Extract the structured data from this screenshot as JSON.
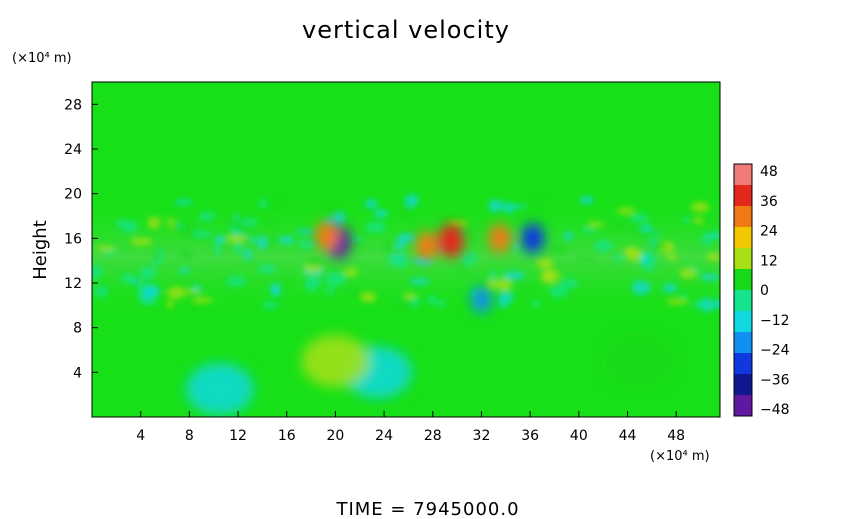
{
  "chart_data": {
    "type": "heatmap",
    "title": "vertical velocity",
    "xlabel": "",
    "x_unit": "(×10⁴ m)",
    "ylabel": "Height",
    "y_unit": "(×10⁴ m)",
    "xlim": [
      0,
      51.6
    ],
    "ylim": [
      0,
      30
    ],
    "x_ticks": [
      4,
      8,
      12,
      16,
      20,
      24,
      28,
      32,
      36,
      40,
      44,
      48
    ],
    "y_ticks": [
      4,
      8,
      12,
      16,
      20,
      24,
      28
    ],
    "colorbar": {
      "ticks": [
        48,
        36,
        24,
        12,
        0,
        -12,
        -24,
        -36,
        -48
      ],
      "range": [
        -48,
        48
      ],
      "colors": [
        "#f07a78",
        "#e4281c",
        "#f07a14",
        "#f2c800",
        "#a8e014",
        "#18d81a",
        "#14e48c",
        "#10d8e0",
        "#1090f0",
        "#1038e0",
        "#101890",
        "#6018a0"
      ]
    },
    "field_features": [
      {
        "x": 20.2,
        "y": 15.7,
        "value": -40
      },
      {
        "x": 19.3,
        "y": 16.2,
        "value": 30
      },
      {
        "x": 29.5,
        "y": 15.8,
        "value": 40
      },
      {
        "x": 27.5,
        "y": 15.3,
        "value": 25
      },
      {
        "x": 33.5,
        "y": 16.0,
        "value": 26
      },
      {
        "x": 36.2,
        "y": 16.0,
        "value": -28
      },
      {
        "x": 32.0,
        "y": 10.5,
        "value": -18
      },
      {
        "x": 10.5,
        "y": 2.5,
        "value": -10
      },
      {
        "x": 23.5,
        "y": 4.0,
        "value": -9
      },
      {
        "x": 20.0,
        "y": 5.0,
        "value": 9
      },
      {
        "x": 45.0,
        "y": 5.0,
        "value": 8
      }
    ]
  },
  "footer": {
    "time_label": "TIME  =  7945000.0"
  }
}
